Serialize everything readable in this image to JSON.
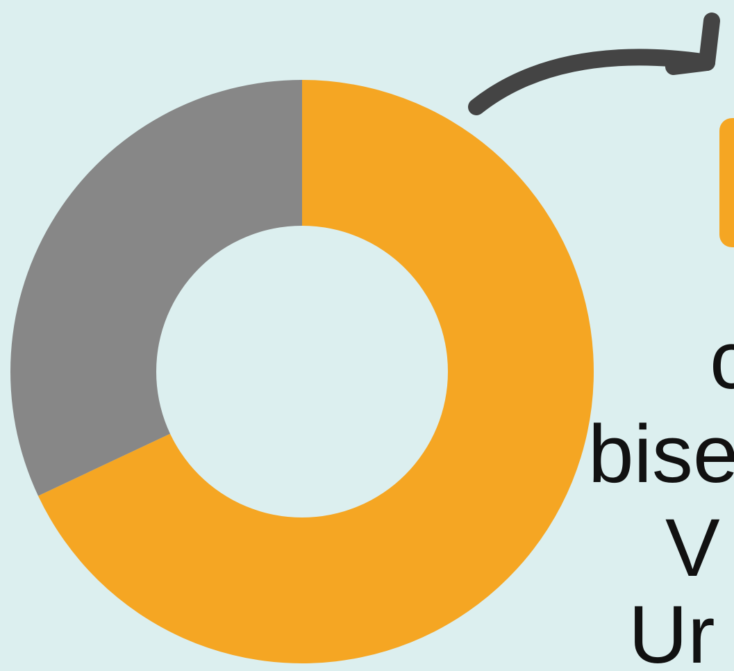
{
  "colors": {
    "background": "#DCEFEF",
    "primary": "#F5A623",
    "secondary": "#878787",
    "arrow": "#444444",
    "text": "#111111"
  },
  "text_fragments": [
    "c",
    "bise",
    "V",
    "Ur"
  ],
  "chart_data": {
    "type": "pie",
    "donut": true,
    "values": [
      68,
      32
    ],
    "colors": [
      "#F5A623",
      "#878787"
    ],
    "title": "",
    "legend": false
  }
}
